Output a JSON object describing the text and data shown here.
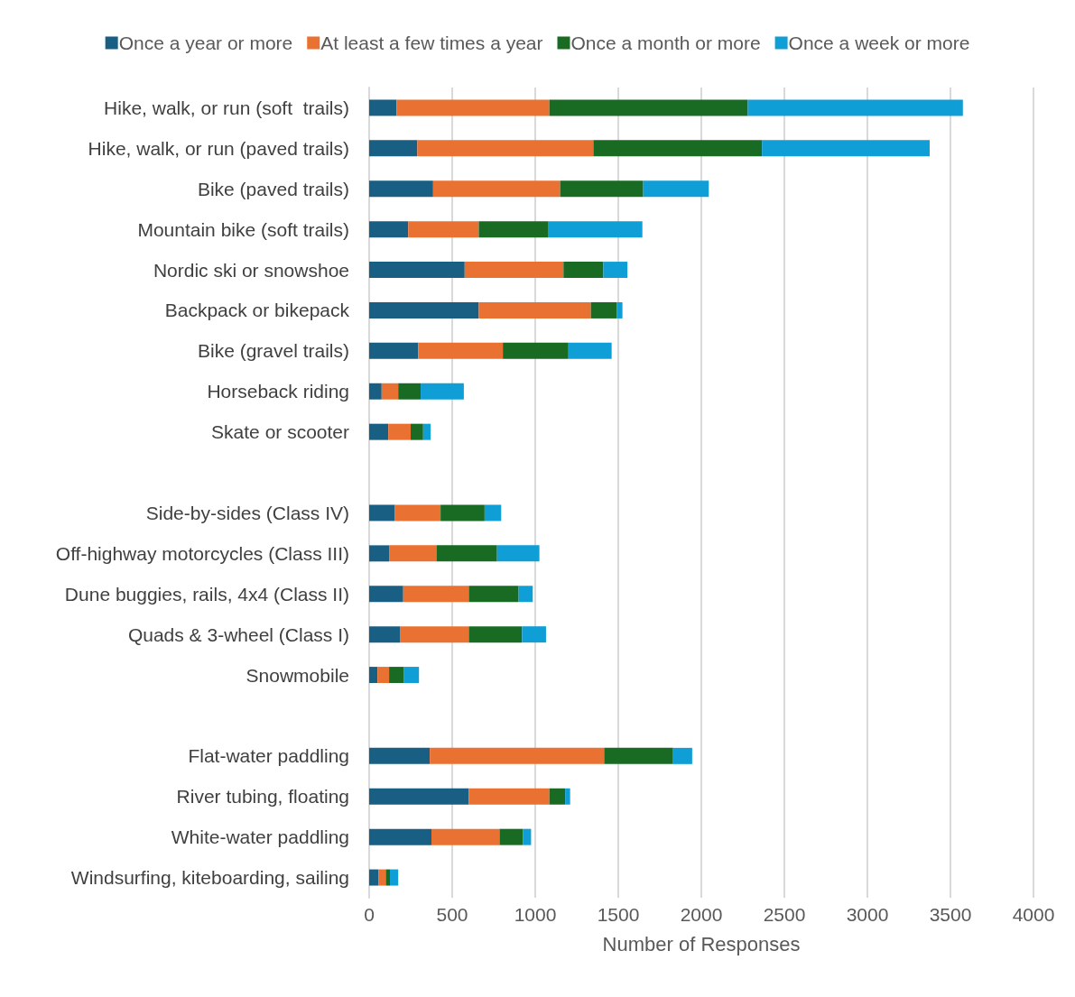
{
  "chart_data": {
    "type": "bar",
    "orientation": "horizontal",
    "stacked": true,
    "xlabel": "Number of Responses",
    "categories": [
      "Hike, walk, or run (soft  trails)",
      "Hike, walk, or run (paved trails)",
      "Bike (paved trails)",
      "Mountain bike (soft trails)",
      "Nordic ski or snowshoe",
      "Backpack or bikepack",
      "Bike (gravel trails)",
      "Horseback riding",
      "Skate or scooter",
      null,
      "Side-by-sides (Class IV)",
      "Off-highway motorcycles (Class III)",
      "Dune buggies, rails, 4x4 (Class II)",
      "Quads & 3-wheel (Class I)",
      "Snowmobile",
      null,
      "Flat-water paddling",
      "River tubing, floating",
      "White-water paddling",
      "Windsurfing, kiteboarding, sailing"
    ],
    "series": [
      {
        "name": "Once a year or more",
        "color": "#195e83",
        "values": [
          165,
          290,
          385,
          235,
          575,
          660,
          295,
          75,
          115,
          null,
          155,
          120,
          205,
          185,
          50,
          null,
          365,
          600,
          375,
          55
        ]
      },
      {
        "name": "At least a few times a year",
        "color": "#e97132",
        "values": [
          920,
          1060,
          765,
          425,
          595,
          675,
          510,
          100,
          135,
          null,
          275,
          285,
          395,
          415,
          70,
          null,
          1050,
          485,
          410,
          45
        ]
      },
      {
        "name": "Once a month or more",
        "color": "#196b24",
        "values": [
          1195,
          1015,
          500,
          420,
          240,
          155,
          395,
          135,
          75,
          null,
          265,
          365,
          300,
          320,
          90,
          null,
          415,
          95,
          140,
          25
        ]
      },
      {
        "name": "Once a week or more",
        "color": "#0f9ed5",
        "values": [
          1295,
          1010,
          395,
          565,
          145,
          35,
          260,
          260,
          45,
          null,
          100,
          255,
          85,
          145,
          90,
          null,
          115,
          30,
          50,
          50
        ]
      }
    ],
    "xlim": [
      0,
      4000
    ],
    "xticks": [
      0,
      500,
      1000,
      1500,
      2000,
      2500,
      3000,
      3500,
      4000
    ],
    "grid": "x",
    "legend": "top"
  }
}
